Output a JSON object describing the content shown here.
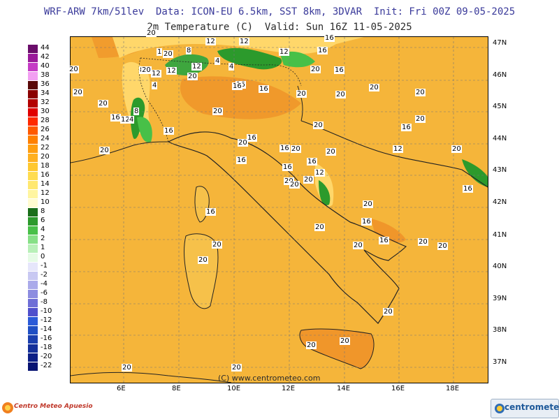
{
  "header": {
    "line1": "WRF-ARW 7km/51lev  Data: ICON-EU 6.5km, SST 8km, 3DVAR  Init: Fri 00Z 09-05-2025",
    "line2": "2m Temperature (C)  Valid: Sun 16Z 11-05-2025"
  },
  "legend": [
    {
      "label": "44",
      "color": "#6a0d6a"
    },
    {
      "label": "42",
      "color": "#9a1a9a"
    },
    {
      "label": "40",
      "color": "#c53cc5"
    },
    {
      "label": "38",
      "color": "#f29ff2"
    },
    {
      "label": "36",
      "color": "#5a0808"
    },
    {
      "label": "34",
      "color": "#8b0000"
    },
    {
      "label": "32",
      "color": "#b30000"
    },
    {
      "label": "30",
      "color": "#e00000"
    },
    {
      "label": "28",
      "color": "#ff2a00"
    },
    {
      "label": "26",
      "color": "#ff5a00"
    },
    {
      "label": "24",
      "color": "#ff8000"
    },
    {
      "label": "22",
      "color": "#ff9e10"
    },
    {
      "label": "20",
      "color": "#ffb020"
    },
    {
      "label": "18",
      "color": "#ffc830"
    },
    {
      "label": "16",
      "color": "#ffdc50"
    },
    {
      "label": "14",
      "color": "#ffe870"
    },
    {
      "label": "12",
      "color": "#fff5a0"
    },
    {
      "label": "10",
      "color": "#fffbd0"
    },
    {
      "label": "8",
      "color": "#1a6e1a"
    },
    {
      "label": "6",
      "color": "#2c9a2c"
    },
    {
      "label": "4",
      "color": "#48c048"
    },
    {
      "label": "2",
      "color": "#86e086"
    },
    {
      "label": "1",
      "color": "#b8f0b8"
    },
    {
      "label": "0",
      "color": "#e6fbe6"
    },
    {
      "label": "-1",
      "color": "#e6e6fb"
    },
    {
      "label": "-2",
      "color": "#c8c8f2"
    },
    {
      "label": "-4",
      "color": "#aaaaea"
    },
    {
      "label": "-6",
      "color": "#8c8ce0"
    },
    {
      "label": "-8",
      "color": "#6e6ed6"
    },
    {
      "label": "-10",
      "color": "#5050cc"
    },
    {
      "label": "-12",
      "color": "#2b5bd8"
    },
    {
      "label": "-14",
      "color": "#1f4fc4"
    },
    {
      "label": "-16",
      "color": "#1a3fae"
    },
    {
      "label": "-18",
      "color": "#14309a"
    },
    {
      "label": "-20",
      "color": "#0c1f86"
    },
    {
      "label": "-22",
      "color": "#081472"
    }
  ],
  "latitudes": [
    "47N",
    "46N",
    "45N",
    "44N",
    "43N",
    "42N",
    "41N",
    "40N",
    "39N",
    "38N",
    "37N"
  ],
  "longitudes": [
    "6E",
    "8E",
    "10E",
    "12E",
    "14E",
    "16E",
    "18E"
  ],
  "map_labels": [
    "20",
    "12",
    "12",
    "8",
    "16",
    "16",
    "12",
    "1",
    "20",
    "8",
    "12",
    "12",
    "12",
    "16",
    "4",
    "4",
    "20",
    "16",
    "20",
    "20",
    "16",
    "4",
    "20",
    "16",
    "20",
    "20",
    "20",
    "20",
    "16",
    "12",
    "4",
    "8",
    "16",
    "20",
    "16",
    "16",
    "20",
    "20",
    "20",
    "12",
    "20",
    "16",
    "16",
    "20",
    "20",
    "12",
    "20",
    "16",
    "20",
    "16",
    "20",
    "20",
    "16",
    "16",
    "20",
    "20",
    "16",
    "20",
    "20",
    "20",
    "20",
    "20",
    "20",
    "20",
    "20",
    "20",
    "20",
    "16",
    "20",
    "20"
  ],
  "footer": {
    "copyright": "(C) www.centrometeo.com",
    "logo_left": "Centro Meteo Apuesio",
    "logo_right": "centrometeo"
  }
}
